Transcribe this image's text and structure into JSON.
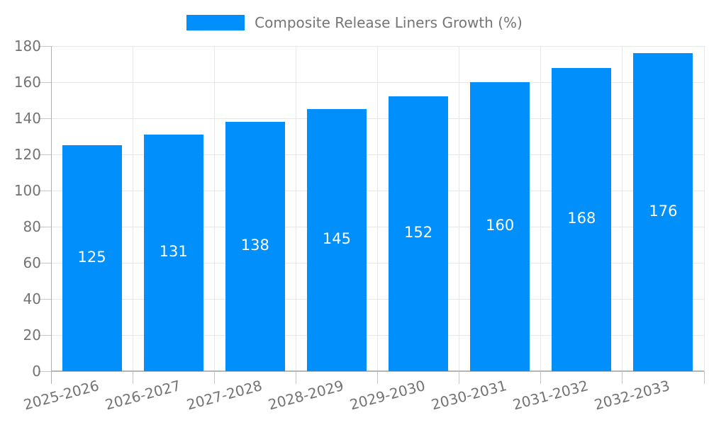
{
  "chart_data": {
    "type": "bar",
    "legend": "Composite Release Liners Growth (%)",
    "categories": [
      "2025-2026",
      "2026-2027",
      "2027-2028",
      "2028-2029",
      "2029-2030",
      "2030-2031",
      "2031-2032",
      "2032-2033"
    ],
    "series": [
      {
        "name": "Composite Release Liners Growth (%)",
        "values": [
          125,
          131,
          138,
          145,
          152,
          160,
          168,
          176
        ]
      }
    ],
    "title": "",
    "xlabel": "",
    "ylabel": "",
    "ylim": [
      0,
      180
    ],
    "yticks": [
      0,
      20,
      40,
      60,
      80,
      100,
      120,
      140,
      160,
      180
    ],
    "grid": true,
    "legend_position": "top",
    "x_label_rotation": -15,
    "bar_color": "#008FFB",
    "value_label_color": "#ffffff",
    "axis_label_color": "#737373",
    "legend_text_color": "#757575",
    "gridline_color": "#e7e7e7"
  }
}
